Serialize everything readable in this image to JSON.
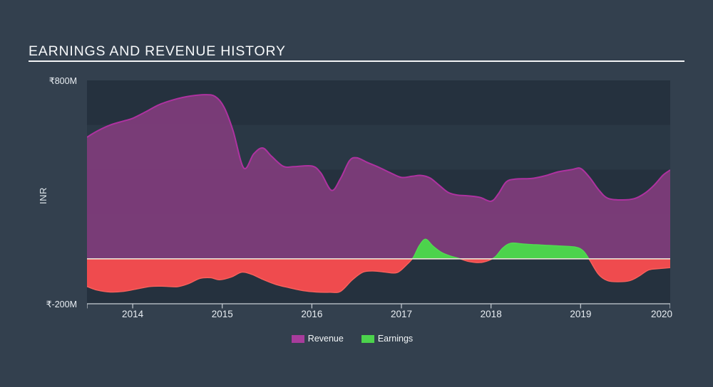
{
  "header": {
    "title": "EARNINGS AND REVENUE HISTORY"
  },
  "y_axis": {
    "label": "INR",
    "top_tick": "₹800M",
    "bottom_tick": "₹-200M"
  },
  "x_axis": {
    "ticks": [
      "2014",
      "2015",
      "2016",
      "2017",
      "2018",
      "2019",
      "2020"
    ]
  },
  "legend": {
    "revenue_label": "Revenue",
    "earnings_label": "Earnings"
  },
  "colors": {
    "page_bg": "#33404e",
    "band_dark": "#25313e",
    "band_light": "#2a3845",
    "revenue_fill": "#7d3c7a",
    "revenue_line": "#ae32a0",
    "revenue_swatch": "#a83c9c",
    "earnings_positive": "#4cd34c",
    "earnings_positive_edge": "#52da52",
    "earnings_negative": "#ef4b4e",
    "earnings_negative_edge": "#f8615c",
    "zero_line": "#e8e3d6",
    "axis_line": "#c7ced5"
  },
  "chart_data": {
    "type": "area",
    "title": "EARNINGS AND REVENUE HISTORY",
    "xlabel": "",
    "ylabel": "INR",
    "unit": "₹ millions (INR)",
    "ylim": [
      -200,
      800
    ],
    "xlim": [
      2013.49,
      2020.0
    ],
    "x_tick_years": [
      2014,
      2015,
      2016,
      2017,
      2018,
      2019,
      2020
    ],
    "grid_band_step_M": 200,
    "zero_line": true,
    "legend_position": "bottom",
    "series": [
      {
        "name": "Revenue",
        "type": "area",
        "points": [
          [
            2013.49,
            545
          ],
          [
            2013.6,
            572
          ],
          [
            2013.75,
            600
          ],
          [
            2013.9,
            618
          ],
          [
            2014.0,
            630
          ],
          [
            2014.15,
            660
          ],
          [
            2014.3,
            692
          ],
          [
            2014.5,
            718
          ],
          [
            2014.65,
            730
          ],
          [
            2014.8,
            736
          ],
          [
            2014.92,
            728
          ],
          [
            2015.02,
            680
          ],
          [
            2015.12,
            575
          ],
          [
            2015.24,
            407
          ],
          [
            2015.35,
            470
          ],
          [
            2015.45,
            497
          ],
          [
            2015.55,
            460
          ],
          [
            2015.68,
            415
          ],
          [
            2015.8,
            413
          ],
          [
            2016.0,
            416
          ],
          [
            2016.1,
            385
          ],
          [
            2016.22,
            307
          ],
          [
            2016.32,
            360
          ],
          [
            2016.42,
            440
          ],
          [
            2016.5,
            453
          ],
          [
            2016.62,
            432
          ],
          [
            2016.75,
            410
          ],
          [
            2016.88,
            385
          ],
          [
            2017.0,
            365
          ],
          [
            2017.12,
            370
          ],
          [
            2017.22,
            374
          ],
          [
            2017.32,
            362
          ],
          [
            2017.42,
            330
          ],
          [
            2017.52,
            298
          ],
          [
            2017.62,
            286
          ],
          [
            2017.75,
            282
          ],
          [
            2017.88,
            275
          ],
          [
            2018.0,
            258
          ],
          [
            2018.08,
            290
          ],
          [
            2018.17,
            345
          ],
          [
            2018.28,
            358
          ],
          [
            2018.45,
            360
          ],
          [
            2018.6,
            372
          ],
          [
            2018.75,
            390
          ],
          [
            2018.9,
            400
          ],
          [
            2019.0,
            405
          ],
          [
            2019.1,
            365
          ],
          [
            2019.2,
            310
          ],
          [
            2019.3,
            272
          ],
          [
            2019.45,
            264
          ],
          [
            2019.6,
            270
          ],
          [
            2019.72,
            295
          ],
          [
            2019.82,
            330
          ],
          [
            2019.92,
            375
          ],
          [
            2020.0,
            398
          ]
        ]
      },
      {
        "name": "Earnings",
        "type": "area",
        "points": [
          [
            2013.49,
            -124
          ],
          [
            2013.6,
            -140
          ],
          [
            2013.75,
            -149
          ],
          [
            2013.9,
            -146
          ],
          [
            2014.05,
            -135
          ],
          [
            2014.2,
            -124
          ],
          [
            2014.35,
            -123
          ],
          [
            2014.5,
            -125
          ],
          [
            2014.62,
            -112
          ],
          [
            2014.75,
            -88
          ],
          [
            2014.87,
            -85
          ],
          [
            2014.97,
            -94
          ],
          [
            2015.1,
            -82
          ],
          [
            2015.22,
            -60
          ],
          [
            2015.33,
            -70
          ],
          [
            2015.45,
            -92
          ],
          [
            2015.6,
            -115
          ],
          [
            2015.75,
            -130
          ],
          [
            2015.9,
            -143
          ],
          [
            2016.05,
            -149
          ],
          [
            2016.2,
            -150
          ],
          [
            2016.32,
            -146
          ],
          [
            2016.45,
            -95
          ],
          [
            2016.57,
            -60
          ],
          [
            2016.7,
            -55
          ],
          [
            2016.82,
            -60
          ],
          [
            2016.95,
            -62
          ],
          [
            2017.05,
            -30
          ],
          [
            2017.13,
            5
          ],
          [
            2017.2,
            60
          ],
          [
            2017.27,
            88
          ],
          [
            2017.35,
            58
          ],
          [
            2017.45,
            28
          ],
          [
            2017.55,
            12
          ],
          [
            2017.64,
            2
          ],
          [
            2017.75,
            -12
          ],
          [
            2017.87,
            -17
          ],
          [
            2017.97,
            -8
          ],
          [
            2018.05,
            10
          ],
          [
            2018.13,
            48
          ],
          [
            2018.22,
            70
          ],
          [
            2018.35,
            67
          ],
          [
            2018.5,
            63
          ],
          [
            2018.65,
            60
          ],
          [
            2018.8,
            57
          ],
          [
            2018.95,
            52
          ],
          [
            2019.03,
            35
          ],
          [
            2019.1,
            -5
          ],
          [
            2019.2,
            -70
          ],
          [
            2019.3,
            -98
          ],
          [
            2019.42,
            -103
          ],
          [
            2019.55,
            -98
          ],
          [
            2019.65,
            -78
          ],
          [
            2019.76,
            -50
          ],
          [
            2019.88,
            -44
          ],
          [
            2020.0,
            -40
          ]
        ]
      }
    ]
  }
}
